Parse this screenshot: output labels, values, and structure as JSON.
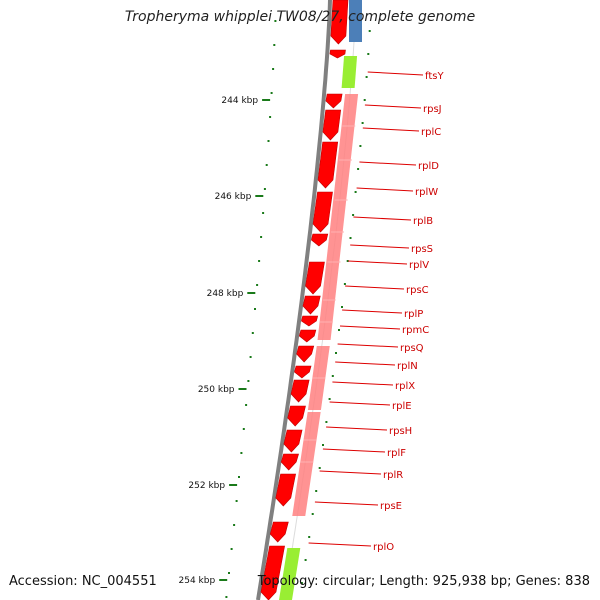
{
  "title": "Tropheryma whipplei TW08/27, complete genome",
  "footer": {
    "accession": "Accession: NC_004551",
    "topology": "Topology: circular; Length: 925,938 bp; Genes: 838"
  },
  "colors": {
    "forward_gene": "#ff0000",
    "reverse_gene": "#ff8080",
    "other_gene_green": "#99ee33",
    "other_gene_blue": "#4c7fb8",
    "tick": "#1a7a1a",
    "label_line": "#dd0000",
    "label_text": "#cc0000",
    "backbone": "#808080"
  },
  "scale_labels": [
    "244 kbp",
    "246 kbp",
    "248 kbp",
    "250 kbp",
    "252 kbp",
    "254 kbp"
  ],
  "gene_labels": [
    "ftsY",
    "rpsJ",
    "rplC",
    "rplD",
    "rplW",
    "rplB",
    "rpsS",
    "rplV",
    "rpsC",
    "rplP",
    "rpmC",
    "rpsQ",
    "rplN",
    "rplX",
    "rplE",
    "rpsH",
    "rplF",
    "rplR",
    "rpsE",
    "rplO"
  ]
}
